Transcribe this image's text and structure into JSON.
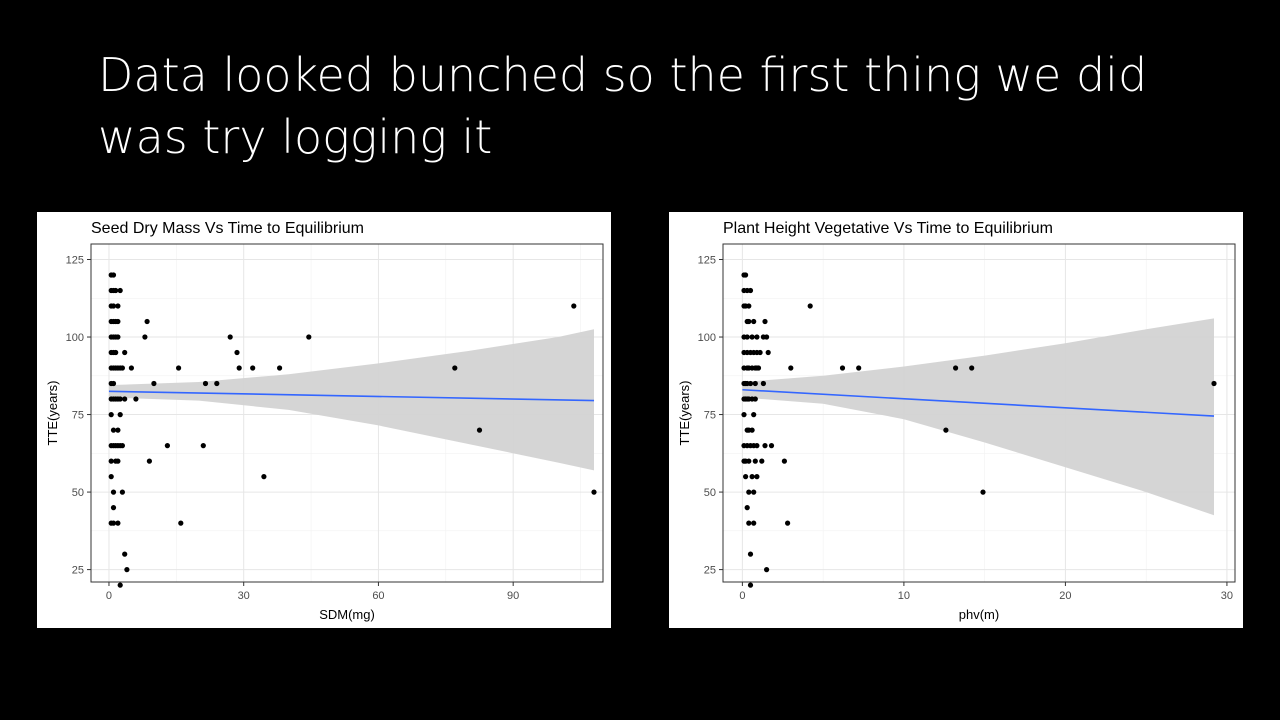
{
  "slide": {
    "title_line1": "Data looked bunched so the first thing we did",
    "title_line2": "was try logging it"
  },
  "chart_data": [
    {
      "type": "scatter",
      "title": "Seed Dry Mass Vs Time to Equilibrium",
      "xlabel": "SDM(mg)",
      "ylabel": "TTE(years)",
      "xlim": [
        -4,
        110
      ],
      "ylim": [
        21,
        130
      ],
      "xticks": [
        0,
        30,
        60,
        90
      ],
      "yticks": [
        25,
        50,
        75,
        100,
        125
      ],
      "grid": true,
      "colors": {
        "points": "#000000",
        "fit": "#3366ff",
        "band": "#d3d3d3"
      },
      "fit": {
        "x0": 0,
        "y0": 82.5,
        "x1": 108,
        "y1": 79.5
      },
      "band": {
        "x": [
          0,
          20,
          40,
          60,
          80,
          100,
          108
        ],
        "lower": [
          80.5,
          79.5,
          76.5,
          71.5,
          65.5,
          59.5,
          57
        ],
        "upper": [
          84.5,
          85.5,
          88,
          91.5,
          95.5,
          100,
          102.5
        ]
      },
      "points": [
        [
          0.5,
          120
        ],
        [
          0.5,
          115
        ],
        [
          0.5,
          110
        ],
        [
          0.5,
          105
        ],
        [
          0.5,
          100
        ],
        [
          0.5,
          95
        ],
        [
          0.5,
          90
        ],
        [
          0.5,
          85
        ],
        [
          0.5,
          80
        ],
        [
          0.5,
          75
        ],
        [
          0.5,
          65
        ],
        [
          0.5,
          60
        ],
        [
          0.5,
          55
        ],
        [
          0.5,
          40
        ],
        [
          1,
          120
        ],
        [
          1,
          115
        ],
        [
          1,
          110
        ],
        [
          1,
          105
        ],
        [
          1,
          100
        ],
        [
          1,
          95
        ],
        [
          1,
          90
        ],
        [
          1,
          85
        ],
        [
          1,
          80
        ],
        [
          1,
          70
        ],
        [
          1,
          65
        ],
        [
          1,
          50
        ],
        [
          1,
          45
        ],
        [
          1,
          40
        ],
        [
          1.5,
          115
        ],
        [
          1.5,
          105
        ],
        [
          1.5,
          100
        ],
        [
          1.5,
          95
        ],
        [
          1.5,
          90
        ],
        [
          1.5,
          80
        ],
        [
          1.5,
          65
        ],
        [
          1.5,
          60
        ],
        [
          2,
          110
        ],
        [
          2,
          105
        ],
        [
          2,
          100
        ],
        [
          2,
          90
        ],
        [
          2,
          80
        ],
        [
          2,
          70
        ],
        [
          2,
          65
        ],
        [
          2,
          60
        ],
        [
          2,
          40
        ],
        [
          2.5,
          115
        ],
        [
          2.5,
          90
        ],
        [
          2.5,
          80
        ],
        [
          2.5,
          75
        ],
        [
          2.5,
          65
        ],
        [
          2.5,
          20
        ],
        [
          3,
          90
        ],
        [
          3,
          65
        ],
        [
          3,
          50
        ],
        [
          3.5,
          95
        ],
        [
          3.5,
          80
        ],
        [
          3.5,
          30
        ],
        [
          4,
          25
        ],
        [
          5,
          90
        ],
        [
          6,
          80
        ],
        [
          8,
          100
        ],
        [
          8.5,
          105
        ],
        [
          9,
          60
        ],
        [
          10,
          85
        ],
        [
          13,
          65
        ],
        [
          15.5,
          90
        ],
        [
          16,
          40
        ],
        [
          21,
          65
        ],
        [
          21.5,
          85
        ],
        [
          24,
          85
        ],
        [
          27,
          100
        ],
        [
          28.5,
          95
        ],
        [
          29,
          90
        ],
        [
          32,
          90
        ],
        [
          34.5,
          55
        ],
        [
          38,
          90
        ],
        [
          44.5,
          100
        ],
        [
          77,
          90
        ],
        [
          82.5,
          70
        ],
        [
          103.5,
          110
        ],
        [
          108,
          50
        ]
      ]
    },
    {
      "type": "scatter",
      "title": "Plant Height Vegetative Vs Time to Equilibrium",
      "xlabel": "phv(m)",
      "ylabel": "TTE(years)",
      "xlim": [
        -1.2,
        30.5
      ],
      "ylim": [
        21,
        130
      ],
      "xticks": [
        0,
        10,
        20,
        30
      ],
      "yticks": [
        25,
        50,
        75,
        100,
        125
      ],
      "grid": true,
      "colors": {
        "points": "#000000",
        "fit": "#3366ff",
        "band": "#d3d3d3"
      },
      "fit": {
        "x0": 0,
        "y0": 83,
        "x1": 29.2,
        "y1": 74.5
      },
      "band": {
        "x": [
          0,
          5,
          10,
          15,
          20,
          25,
          29.2
        ],
        "lower": [
          80.5,
          78.5,
          73.5,
          66,
          58,
          50,
          42.5
        ],
        "upper": [
          85.5,
          87.5,
          90.5,
          94,
          98,
          102.5,
          106
        ]
      },
      "points": [
        [
          0.1,
          120
        ],
        [
          0.1,
          115
        ],
        [
          0.1,
          110
        ],
        [
          0.1,
          100
        ],
        [
          0.1,
          95
        ],
        [
          0.1,
          90
        ],
        [
          0.1,
          85
        ],
        [
          0.1,
          80
        ],
        [
          0.1,
          75
        ],
        [
          0.1,
          65
        ],
        [
          0.1,
          60
        ],
        [
          0.2,
          120
        ],
        [
          0.2,
          110
        ],
        [
          0.2,
          85
        ],
        [
          0.2,
          80
        ],
        [
          0.2,
          60
        ],
        [
          0.2,
          55
        ],
        [
          0.3,
          115
        ],
        [
          0.3,
          105
        ],
        [
          0.3,
          100
        ],
        [
          0.3,
          95
        ],
        [
          0.3,
          90
        ],
        [
          0.3,
          85
        ],
        [
          0.3,
          80
        ],
        [
          0.3,
          70
        ],
        [
          0.3,
          65
        ],
        [
          0.3,
          45
        ],
        [
          0.4,
          110
        ],
        [
          0.4,
          105
        ],
        [
          0.4,
          90
        ],
        [
          0.4,
          80
        ],
        [
          0.4,
          70
        ],
        [
          0.4,
          60
        ],
        [
          0.4,
          50
        ],
        [
          0.4,
          40
        ],
        [
          0.5,
          115
        ],
        [
          0.5,
          95
        ],
        [
          0.5,
          85
        ],
        [
          0.5,
          65
        ],
        [
          0.5,
          30
        ],
        [
          0.5,
          20
        ],
        [
          0.6,
          100
        ],
        [
          0.6,
          90
        ],
        [
          0.6,
          80
        ],
        [
          0.6,
          70
        ],
        [
          0.6,
          55
        ],
        [
          0.7,
          105
        ],
        [
          0.7,
          95
        ],
        [
          0.7,
          75
        ],
        [
          0.7,
          65
        ],
        [
          0.7,
          50
        ],
        [
          0.7,
          40
        ],
        [
          0.8,
          90
        ],
        [
          0.8,
          85
        ],
        [
          0.8,
          80
        ],
        [
          0.8,
          60
        ],
        [
          0.9,
          100
        ],
        [
          0.9,
          95
        ],
        [
          0.9,
          90
        ],
        [
          0.9,
          65
        ],
        [
          0.9,
          55
        ],
        [
          1,
          90
        ],
        [
          1.1,
          95
        ],
        [
          1.2,
          60
        ],
        [
          1.3,
          100
        ],
        [
          1.3,
          85
        ],
        [
          1.4,
          105
        ],
        [
          1.4,
          65
        ],
        [
          1.5,
          100
        ],
        [
          1.5,
          25
        ],
        [
          1.6,
          95
        ],
        [
          1.8,
          65
        ],
        [
          2.6,
          60
        ],
        [
          2.8,
          40
        ],
        [
          3,
          90
        ],
        [
          4.2,
          110
        ],
        [
          6.2,
          90
        ],
        [
          7.2,
          90
        ],
        [
          12.6,
          70
        ],
        [
          13.2,
          90
        ],
        [
          14.2,
          90
        ],
        [
          14.9,
          50
        ],
        [
          29.2,
          85
        ]
      ]
    }
  ]
}
